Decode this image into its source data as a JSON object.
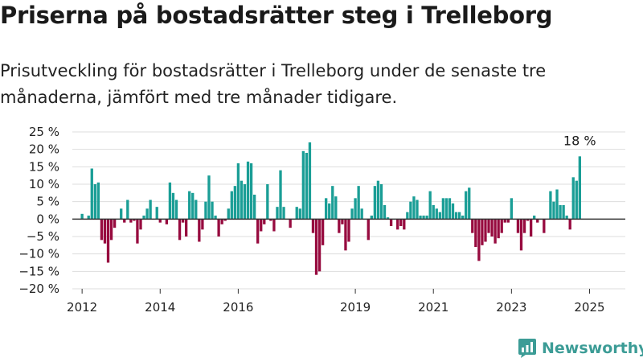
{
  "title": "Priserna på bostadsrätter steg i Trelleborg",
  "subtitle": "Prisutveckling för bostadsrätter i Trelleborg under de senaste tre månaderna, jämfört med tre månader tidigare.",
  "brand": {
    "name": "Newsworthy",
    "icon": "newsworthy-logo-icon"
  },
  "colors": {
    "positive": "#1a9e96",
    "negative": "#970b3f",
    "grid": "#dddddd",
    "zero_line": "#333333"
  },
  "chart_data": {
    "type": "bar",
    "title": "",
    "xlabel": "",
    "ylabel": "",
    "ylim": [
      -20,
      25
    ],
    "y_ticks": [
      25,
      20,
      15,
      10,
      5,
      0,
      -5,
      -10,
      -15,
      -20
    ],
    "y_tick_labels": [
      "25 %",
      "20 %",
      "15 %",
      "10 %",
      "5 %",
      "0 %",
      "−5 %",
      "−10 %",
      "−15 %",
      "−20 %"
    ],
    "x_range": [
      "2011-10-01",
      "2025-12-01"
    ],
    "x_ticks": [
      "2012-01-01",
      "2014-01-01",
      "2016-01-01",
      "2019-01-01",
      "2021-01-01",
      "2023-01-01",
      "2025-01-01"
    ],
    "x_tick_labels": [
      "2012",
      "2014",
      "2016",
      "2019",
      "2021",
      "2023",
      "2025"
    ],
    "grid": true,
    "annotation": {
      "text": "18 %",
      "date": "2025-03-01",
      "value": 18
    },
    "series": [
      {
        "start": "2012-01-01",
        "frequency": "monthly",
        "values": [
          1.5,
          0,
          1,
          14.5,
          10,
          10.5,
          -6,
          -7,
          -12.5,
          -6,
          -2.5,
          0,
          3,
          -1,
          5.5,
          -1,
          -0.5,
          -7,
          -3,
          1,
          3,
          5.5,
          0,
          3.5,
          -1,
          0,
          -1.5,
          10.5,
          7.5,
          5.5,
          -6,
          -1,
          -5,
          8,
          7.5,
          5.5,
          -6.5,
          -3,
          5,
          12.5,
          5,
          1,
          -5,
          -1.5,
          -0.5,
          3,
          8,
          9.5,
          16,
          11,
          10,
          16.5,
          16,
          7,
          -7,
          -3.5,
          -1.5,
          10,
          -0.5,
          -3.5,
          3.5,
          14,
          3.5,
          0,
          -2.5,
          0,
          3.5,
          3,
          19.5,
          19,
          22,
          -4,
          -16,
          -15,
          -7.5,
          6,
          4.5,
          9.5,
          6.5,
          -4,
          -1.5,
          -9,
          -6.5,
          3,
          6,
          9.5,
          3,
          0,
          -6,
          1,
          9.5,
          11,
          10,
          4,
          0.5,
          -2,
          0,
          -3,
          -2,
          -3,
          2,
          5,
          6.5,
          5.5,
          1,
          1,
          1,
          8,
          4,
          3,
          2,
          6,
          6,
          6,
          4.5,
          2,
          2,
          1,
          8,
          9,
          -4,
          -8,
          -12,
          -7.5,
          -6.5,
          -4,
          -5,
          -7,
          -5.5,
          -4,
          -1,
          -1,
          6,
          0,
          -4,
          -9,
          -4,
          -0.5,
          -5,
          1,
          -1,
          0,
          -4,
          0,
          8,
          5,
          8.5,
          4,
          4,
          1,
          -3,
          12,
          11,
          18
        ]
      }
    ]
  }
}
